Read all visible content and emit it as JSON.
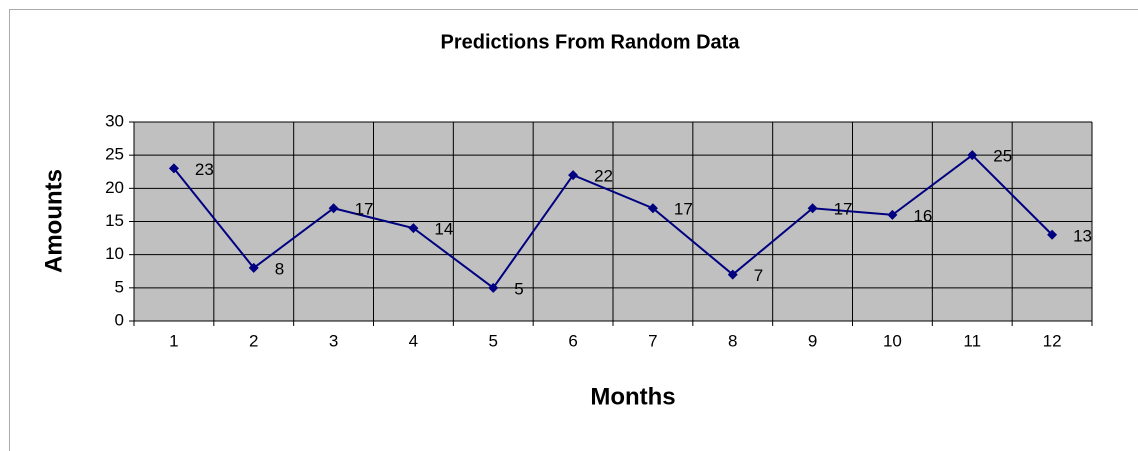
{
  "chart_data": {
    "type": "line",
    "title": "Predictions From Random Data",
    "xlabel": "Months",
    "ylabel": "Amounts",
    "categories": [
      "1",
      "2",
      "3",
      "4",
      "5",
      "6",
      "7",
      "8",
      "9",
      "10",
      "11",
      "12"
    ],
    "series": [
      {
        "name": "Amounts",
        "color": "#000080",
        "values": [
          23,
          8,
          17,
          14,
          5,
          22,
          17,
          7,
          17,
          16,
          25,
          13
        ]
      }
    ],
    "ylim": [
      0,
      30
    ],
    "yticks": [
      0,
      5,
      10,
      15,
      20,
      25,
      30
    ],
    "grid": true,
    "data_labels": true
  }
}
